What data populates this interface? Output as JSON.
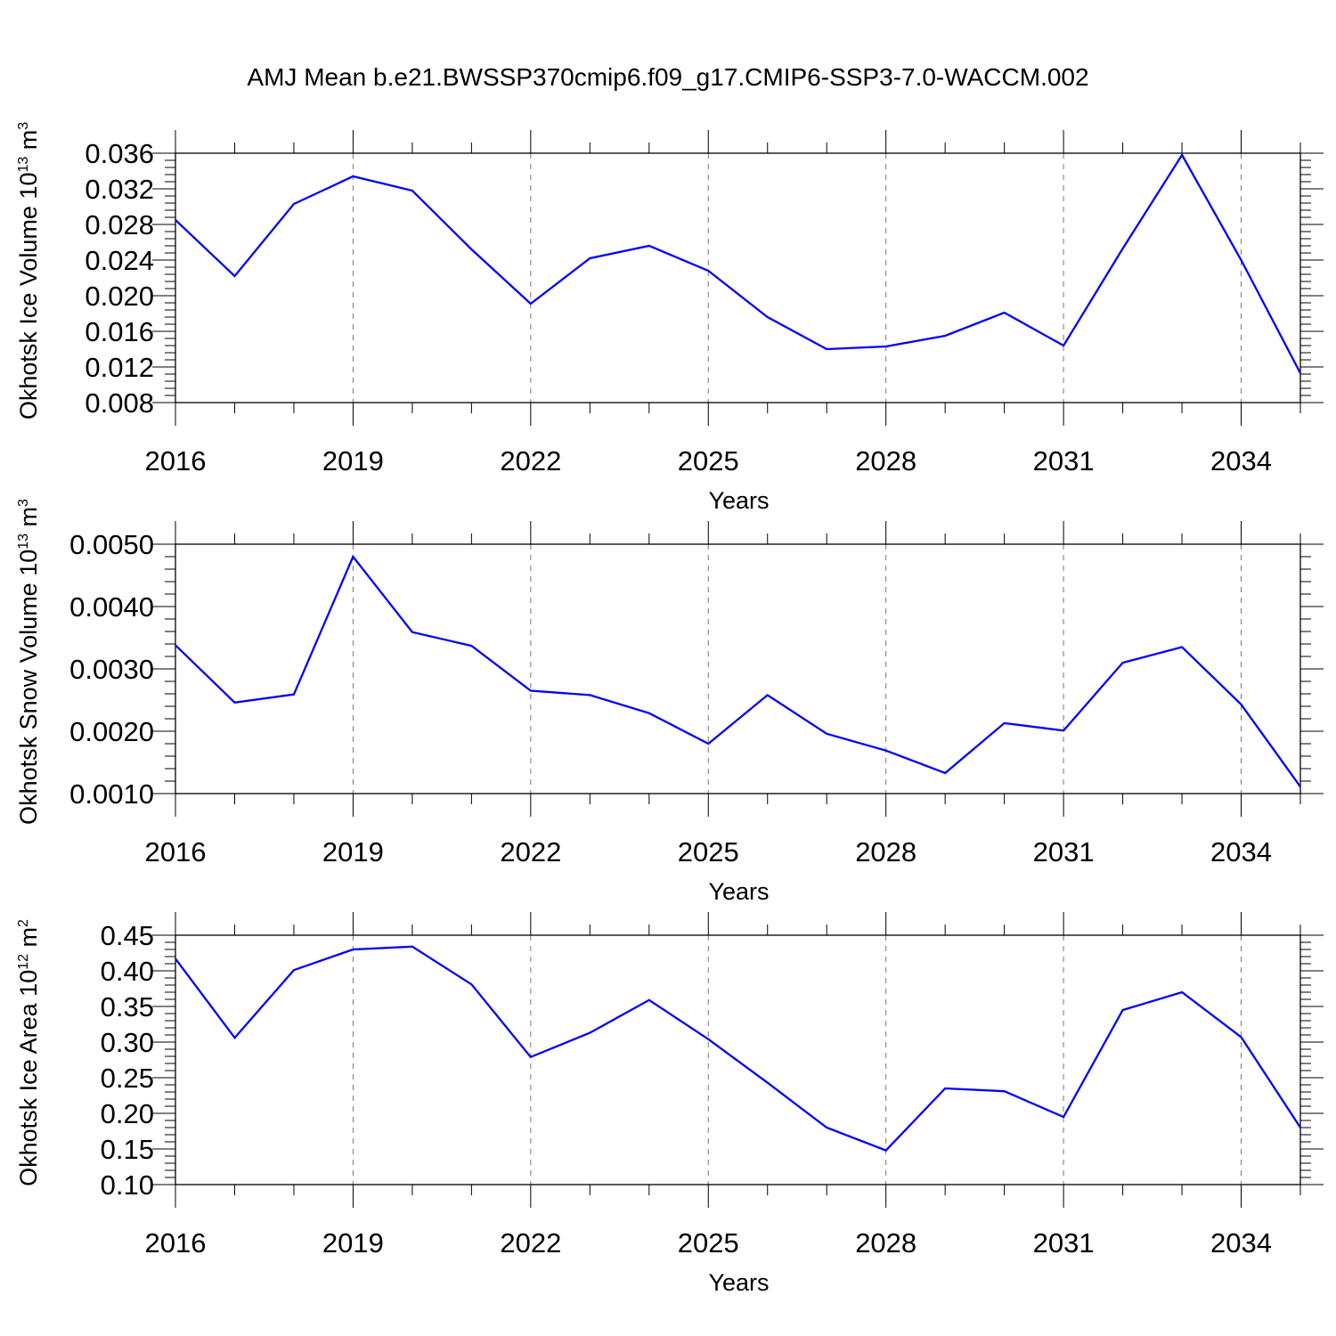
{
  "chart_data": [
    {
      "type": "line",
      "title": "AMJ Mean b.e21.BWSSP370cmip6.f09_g17.CMIP6-SSP3-7.0-WACCM.002",
      "xlabel": "Years",
      "ylabel": {
        "base": "Okhotsk Ice Volume 10",
        "exp": "13",
        "unit": " m",
        "unit_exp": "3"
      },
      "xlim": [
        2016,
        2035
      ],
      "ylim": [
        0.008,
        0.036
      ],
      "x_ticks": [
        "2016",
        "2019",
        "2022",
        "2025",
        "2028",
        "2031",
        "2034"
      ],
      "y_ticks": [
        "0.008",
        "0.012",
        "0.016",
        "0.020",
        "0.024",
        "0.028",
        "0.032",
        "0.036"
      ],
      "grid": "vertical-dashed-at-major-x",
      "line_color": "#0000ff",
      "series": [
        {
          "x": [
            2016,
            2017,
            2018,
            2019,
            2020,
            2021,
            2022,
            2023,
            2024,
            2025,
            2026,
            2027,
            2028,
            2029,
            2030,
            2031,
            2032,
            2033,
            2034,
            2035
          ],
          "values": [
            0.0285,
            0.0222,
            0.0303,
            0.0334,
            0.0318,
            0.0252,
            0.0191,
            0.0242,
            0.0256,
            0.0228,
            0.0176,
            0.014,
            0.0143,
            0.0155,
            0.0181,
            0.0144,
            0.0253,
            0.0358,
            0.024,
            0.0113
          ]
        }
      ]
    },
    {
      "type": "line",
      "title": "",
      "xlabel": "Years",
      "ylabel": {
        "base": "Okhotsk Snow Volume 10",
        "exp": "13",
        "unit": " m",
        "unit_exp": "3"
      },
      "xlim": [
        2016,
        2035
      ],
      "ylim": [
        0.001,
        0.005
      ],
      "x_ticks": [
        "2016",
        "2019",
        "2022",
        "2025",
        "2028",
        "2031",
        "2034"
      ],
      "y_ticks": [
        "0.0010",
        "0.0020",
        "0.0030",
        "0.0040",
        "0.0050"
      ],
      "grid": "vertical-dashed-at-major-x",
      "line_color": "#0000ff",
      "series": [
        {
          "x": [
            2016,
            2017,
            2018,
            2019,
            2020,
            2021,
            2022,
            2023,
            2024,
            2025,
            2026,
            2027,
            2028,
            2029,
            2030,
            2031,
            2032,
            2033,
            2034,
            2035
          ],
          "values": [
            0.00338,
            0.00246,
            0.00259,
            0.0048,
            0.00359,
            0.00337,
            0.00265,
            0.00258,
            0.00229,
            0.0018,
            0.00258,
            0.00196,
            0.00169,
            0.00133,
            0.00213,
            0.00201,
            0.0031,
            0.00335,
            0.00243,
            0.00111
          ]
        }
      ]
    },
    {
      "type": "line",
      "title": "",
      "xlabel": "Years",
      "ylabel": {
        "base": "Okhotsk Ice Area 10",
        "exp": "12",
        "unit": " m",
        "unit_exp": "2"
      },
      "xlim": [
        2016,
        2035
      ],
      "ylim": [
        0.1,
        0.45
      ],
      "x_ticks": [
        "2016",
        "2019",
        "2022",
        "2025",
        "2028",
        "2031",
        "2034"
      ],
      "y_ticks": [
        "0.10",
        "0.15",
        "0.20",
        "0.25",
        "0.30",
        "0.35",
        "0.40",
        "0.45"
      ],
      "grid": "vertical-dashed-at-major-x",
      "line_color": "#0000ff",
      "series": [
        {
          "x": [
            2016,
            2017,
            2018,
            2019,
            2020,
            2021,
            2022,
            2023,
            2024,
            2025,
            2026,
            2027,
            2028,
            2029,
            2030,
            2031,
            2032,
            2033,
            2034,
            2035
          ],
          "values": [
            0.417,
            0.306,
            0.401,
            0.43,
            0.434,
            0.381,
            0.279,
            0.313,
            0.359,
            0.304,
            0.243,
            0.18,
            0.148,
            0.235,
            0.231,
            0.195,
            0.345,
            0.37,
            0.307,
            0.18
          ]
        }
      ]
    }
  ]
}
